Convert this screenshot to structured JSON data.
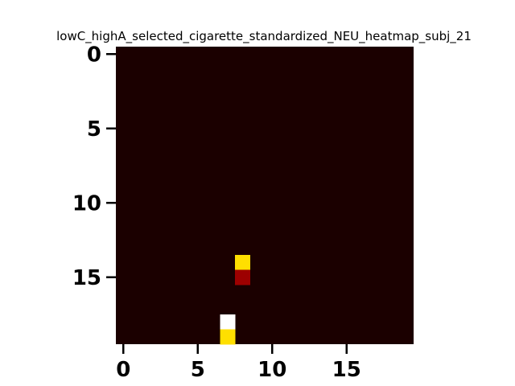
{
  "chart_data": {
    "type": "heatmap",
    "title": "lowC_highA_selected_cigarette_standardized_NEU_heatmap_subj_21",
    "xlabel": "",
    "ylabel": "",
    "rows": 20,
    "cols": 20,
    "xlim": [
      -0.5,
      19.5
    ],
    "ylim": [
      19.5,
      -0.5
    ],
    "xticks": [
      0,
      5,
      10,
      15
    ],
    "yticks": [
      0,
      5,
      10,
      15
    ],
    "colormap": "hot",
    "background_value": 0.0,
    "cells": [
      {
        "row": 14,
        "col": 8,
        "value": 0.7
      },
      {
        "row": 15,
        "col": 8,
        "value": 0.2
      },
      {
        "row": 18,
        "col": 7,
        "value": 1.0
      },
      {
        "row": 19,
        "col": 7,
        "value": 0.7
      }
    ],
    "grid": false,
    "colorbar": false
  }
}
